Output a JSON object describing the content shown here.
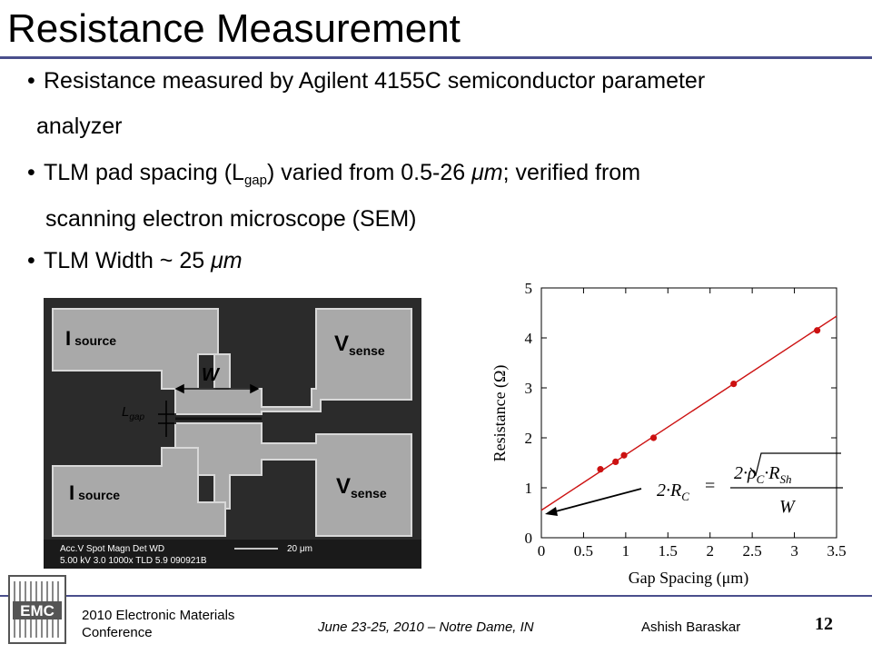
{
  "slide": {
    "title": "Resistance Measurement",
    "bullets": {
      "b1_line1": "Resistance measured by Agilent 4155C semiconductor parameter",
      "b1_line2": "analyzer",
      "b2_pre": "TLM pad spacing (L",
      "b2_sub": "gap",
      "b2_mid": ") varied from 0.5-26 ",
      "b2_unit": "μm",
      "b2_post": "; verified from",
      "b2_line2": "scanning electron microscope (SEM)",
      "b3_pre": "TLM Width ~ 25 ",
      "b3_unit": "μm"
    }
  },
  "sem_image": {
    "label_isource_top": "I",
    "label_isource_top_sub": "source",
    "label_isource_bottom": "I",
    "label_isource_bottom_sub": "source",
    "label_vsense_top": "V",
    "label_vsense_top_sub": "sense",
    "label_vsense_bottom": "V",
    "label_vsense_bottom_sub": "sense",
    "label_w": "W",
    "label_lgap": "L",
    "label_lgap_sub": "gap",
    "info_row1": "Acc.V  Spot Magn    Det  WD",
    "info_row2": "5.00 kV 3.0   1000x    TLD 5.9    090921B",
    "scale_label": "20 μm"
  },
  "chart_data": {
    "type": "scatter",
    "xlabel": "Gap Spacing (μm)",
    "ylabel": "Resistance (Ω)",
    "xlim": [
      0,
      3.5
    ],
    "ylim": [
      0,
      5
    ],
    "x_ticks": [
      "0",
      "0.5",
      "1",
      "1.5",
      "2",
      "2.5",
      "3",
      "3.5"
    ],
    "y_ticks": [
      "0",
      "1",
      "2",
      "3",
      "4",
      "5"
    ],
    "series": [
      {
        "points": [
          [
            0.7,
            1.37
          ],
          [
            0.88,
            1.52
          ],
          [
            0.98,
            1.65
          ],
          [
            1.33,
            2.0
          ],
          [
            2.28,
            3.08
          ],
          [
            3.27,
            4.15
          ]
        ],
        "color": "#cc1111"
      }
    ],
    "fit_line": {
      "intercept": 0.55,
      "slope": 1.11,
      "color": "#cc1111"
    },
    "formula": {
      "lhs": "2·R",
      "lhs_sub": "C",
      "eq": "=",
      "num_pre": "2·",
      "num_rho": "ρ",
      "num_rho_sub": "C",
      "num_mid": "·R",
      "num_rsh_sub": "Sh",
      "den": "W"
    }
  },
  "footer": {
    "conf_line1": "2010 Electronic Materials",
    "conf_line2": "Conference",
    "date": "June 23-25,  2010 – Notre Dame, IN",
    "author": "Ashish Baraskar",
    "page": "12",
    "logo_text": "EMC"
  },
  "colors": {
    "accent_rule": "#4a4f8c",
    "plot_marker": "#cc1111"
  }
}
